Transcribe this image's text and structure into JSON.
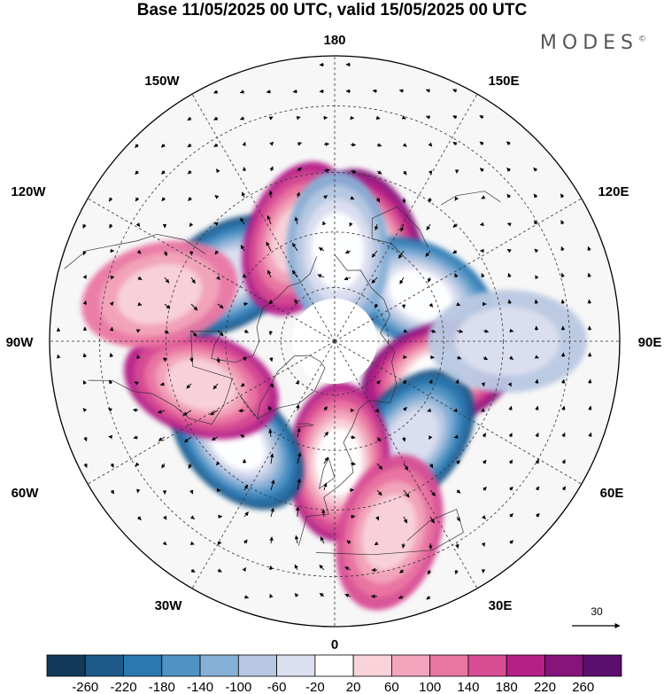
{
  "title": "Base 11/05/2025 00 UTC, valid 15/05/2025 00 UTC",
  "brand": "MODES",
  "brand_mark": "©",
  "longitude_labels": {
    "top": "180",
    "top_left": "150W",
    "top_right": "150E",
    "upper_left": "120W",
    "upper_right": "120E",
    "left": "90W",
    "right": "90E",
    "lower_left": "60W",
    "lower_right": "60E",
    "bottom_left": "30W",
    "bottom_right": "30E",
    "bottom": "0"
  },
  "vector_scale": {
    "value": "30"
  },
  "colorbar": {
    "ticks": [
      "-260",
      "-220",
      "-180",
      "-140",
      "-100",
      "-60",
      "-20",
      "20",
      "60",
      "100",
      "140",
      "180",
      "220",
      "260"
    ],
    "colors": [
      "#143a5a",
      "#1d5a8a",
      "#2a78b0",
      "#4f93c4",
      "#87b0d6",
      "#b8c8e2",
      "#dcdff0",
      "#ffffff",
      "#f8d3da",
      "#f2a5bc",
      "#ea76a2",
      "#d84d94",
      "#b51f88",
      "#86147a",
      "#5a0f6c"
    ]
  },
  "anomaly_centers": [
    {
      "lon": 160,
      "lat": 62,
      "value": 230,
      "sign": "pos"
    },
    {
      "lon": 118,
      "lat": 63,
      "value": -200,
      "sign": "neg"
    },
    {
      "lon": 72,
      "lat": 60,
      "value": 240,
      "sign": "pos"
    },
    {
      "lon": 38,
      "lat": 56,
      "value": -220,
      "sign": "neg"
    },
    {
      "lon": 2,
      "lat": 57,
      "value": 210,
      "sign": "pos"
    },
    {
      "lon": -44,
      "lat": 52,
      "value": -240,
      "sign": "neg"
    },
    {
      "lon": -72,
      "lat": 52,
      "value": 190,
      "sign": "pos"
    },
    {
      "lon": -122,
      "lat": 56,
      "value": -230,
      "sign": "neg"
    },
    {
      "lon": -160,
      "lat": 60,
      "value": 190,
      "sign": "pos"
    },
    {
      "lon": 178,
      "lat": 65,
      "value": -120,
      "sign": "neg"
    },
    {
      "lon": 16,
      "lat": 38,
      "value": 150,
      "sign": "pos"
    },
    {
      "lon": -105,
      "lat": 42,
      "value": 110,
      "sign": "pos"
    },
    {
      "lon": 90,
      "lat": 44,
      "value": -70,
      "sign": "neg"
    }
  ]
}
